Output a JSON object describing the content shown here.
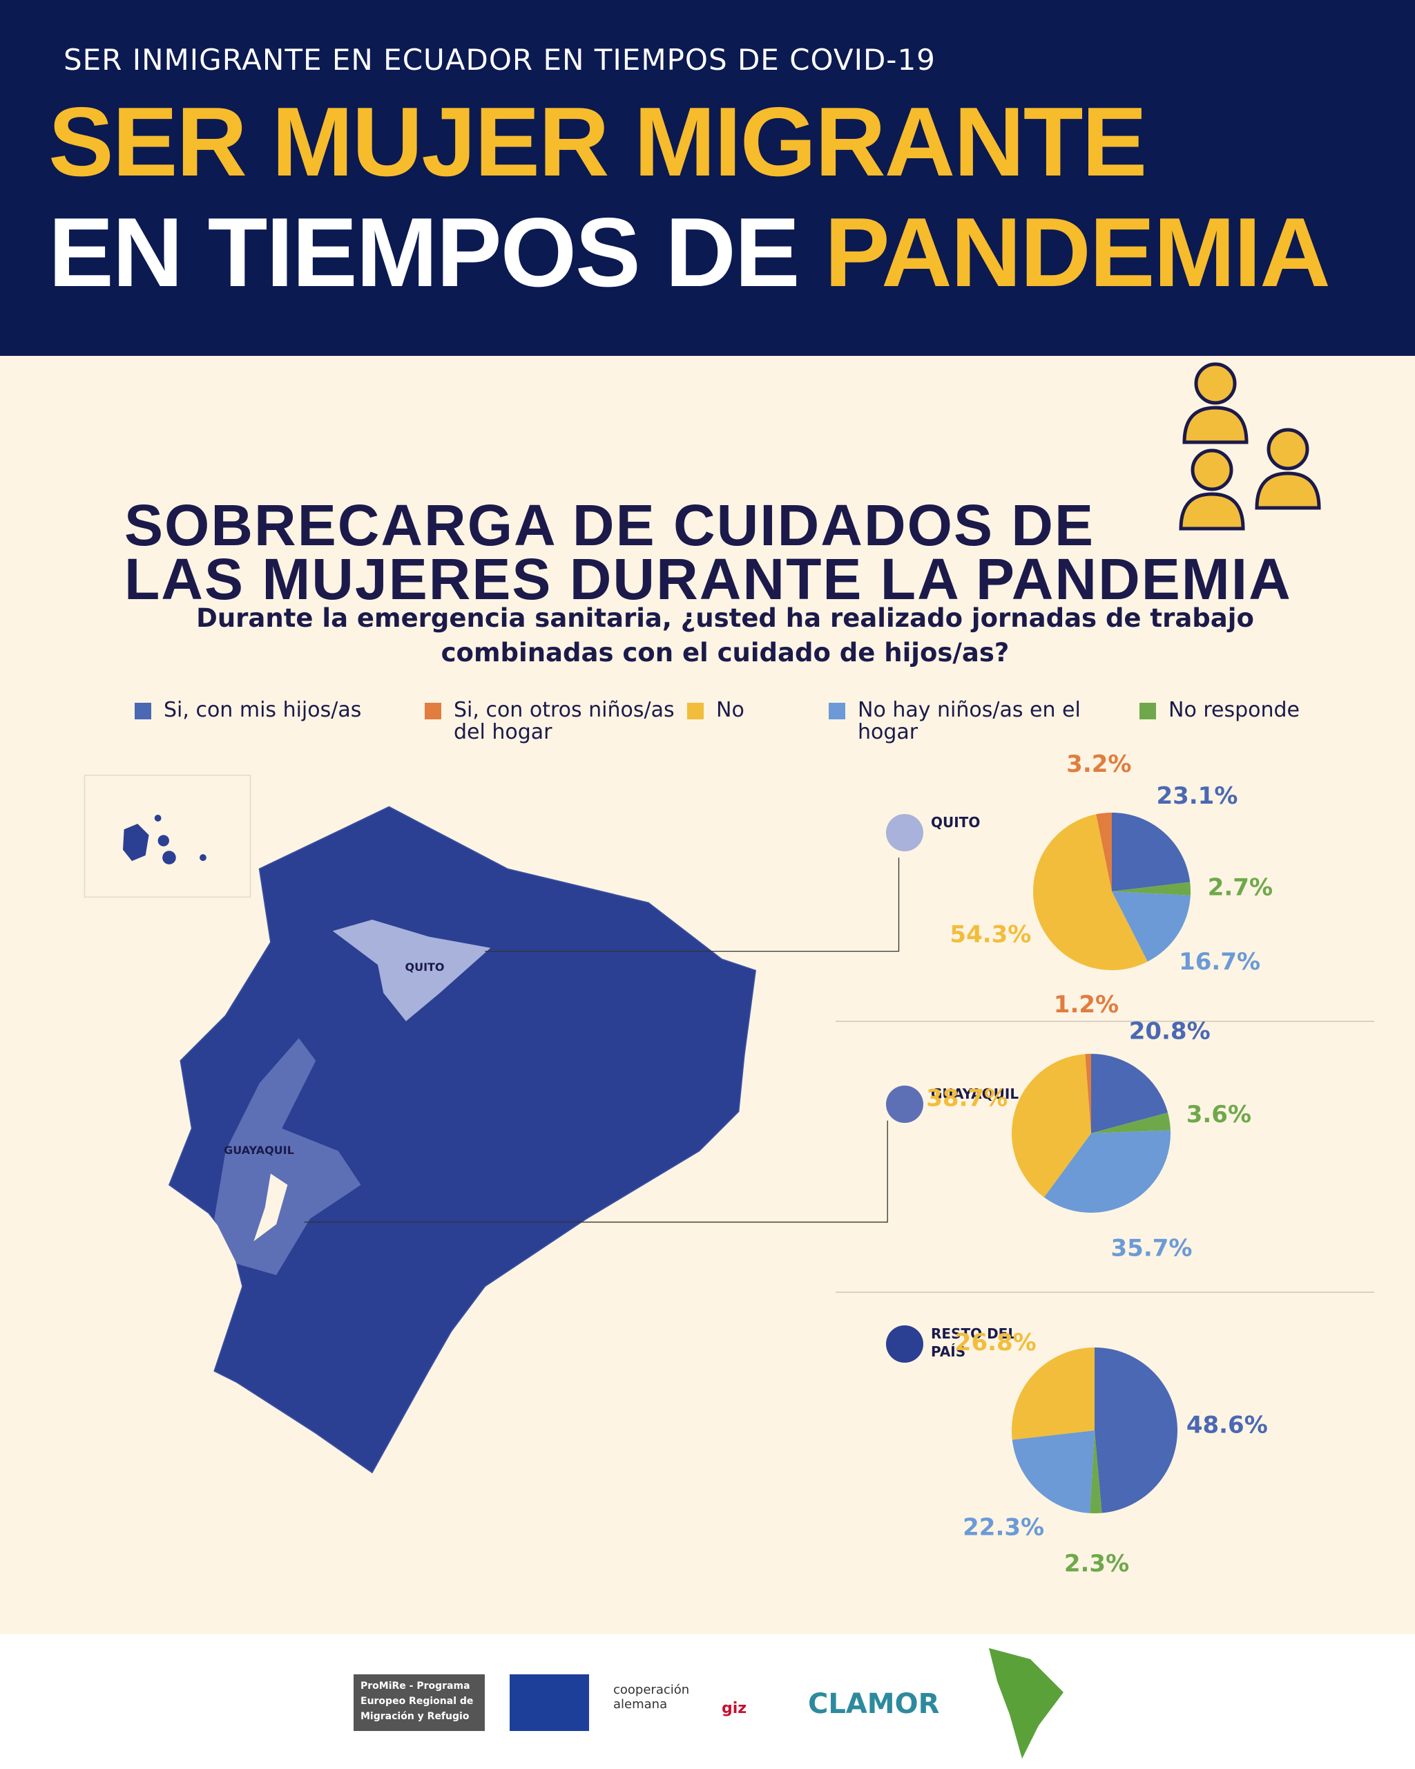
{
  "header": {
    "kicker": "SER INMIGRANTE EN ECUADOR EN TIEMPOS DE COVID-19",
    "title_line1": "SER MUJER MIGRANTE",
    "title_line2_white": "EN TIEMPOS DE",
    "title_line2_yellow": "PANDEMIA"
  },
  "section": {
    "title_line1": "SOBRECARGA DE CUIDADOS DE",
    "title_line2": "LAS MUJERES DURANTE LA PANDEMIA",
    "question": "Durante la emergencia sanitaria, ¿usted ha realizado jornadas de trabajo combinadas con el cuidado de hijos/as?"
  },
  "legend": {
    "items": [
      {
        "label": "Si, con mis hijos/as",
        "color": "#4a68b3"
      },
      {
        "label": "Si, con otros niños/as del hogar",
        "color": "#e07d3f"
      },
      {
        "label": "No",
        "color": "#f2bd3b"
      },
      {
        "label": "No hay niños/as en el hogar",
        "color": "#6b9ad6"
      },
      {
        "label": "No responde",
        "color": "#6fa84b"
      }
    ]
  },
  "map": {
    "labels": [
      "QUITO",
      "GUAYAQUIL"
    ]
  },
  "chart_data": [
    {
      "type": "pie",
      "title": "QUITO",
      "marker_color": "#a8b2da",
      "values": [
        23.1,
        3.2,
        54.3,
        16.7,
        2.7
      ],
      "value_labels": [
        "23.1%",
        "3.2%",
        "54.3%",
        "16.7%",
        "2.7%"
      ]
    },
    {
      "type": "pie",
      "title": "GUAYAQUIL",
      "marker_color": "#5d70b6",
      "values": [
        20.8,
        1.2,
        38.7,
        35.7,
        3.6
      ],
      "value_labels": [
        "20.8%",
        "1.2%",
        "38.7%",
        "35.7%",
        "3.6%"
      ]
    },
    {
      "type": "pie",
      "title": "RESTO DEL PAÍS",
      "marker_color": "#2b3f93",
      "values": [
        48.6,
        0,
        26.8,
        22.3,
        2.3
      ],
      "value_labels": [
        "48.6%",
        null,
        "26.8%",
        "22.3%",
        "2.3%"
      ]
    }
  ],
  "footer": {
    "logos": [
      "ProMiRe - Programa Europeo Regional de Migración y Refugio",
      "cooperación alemana",
      "giz",
      "CLAMOR"
    ]
  }
}
